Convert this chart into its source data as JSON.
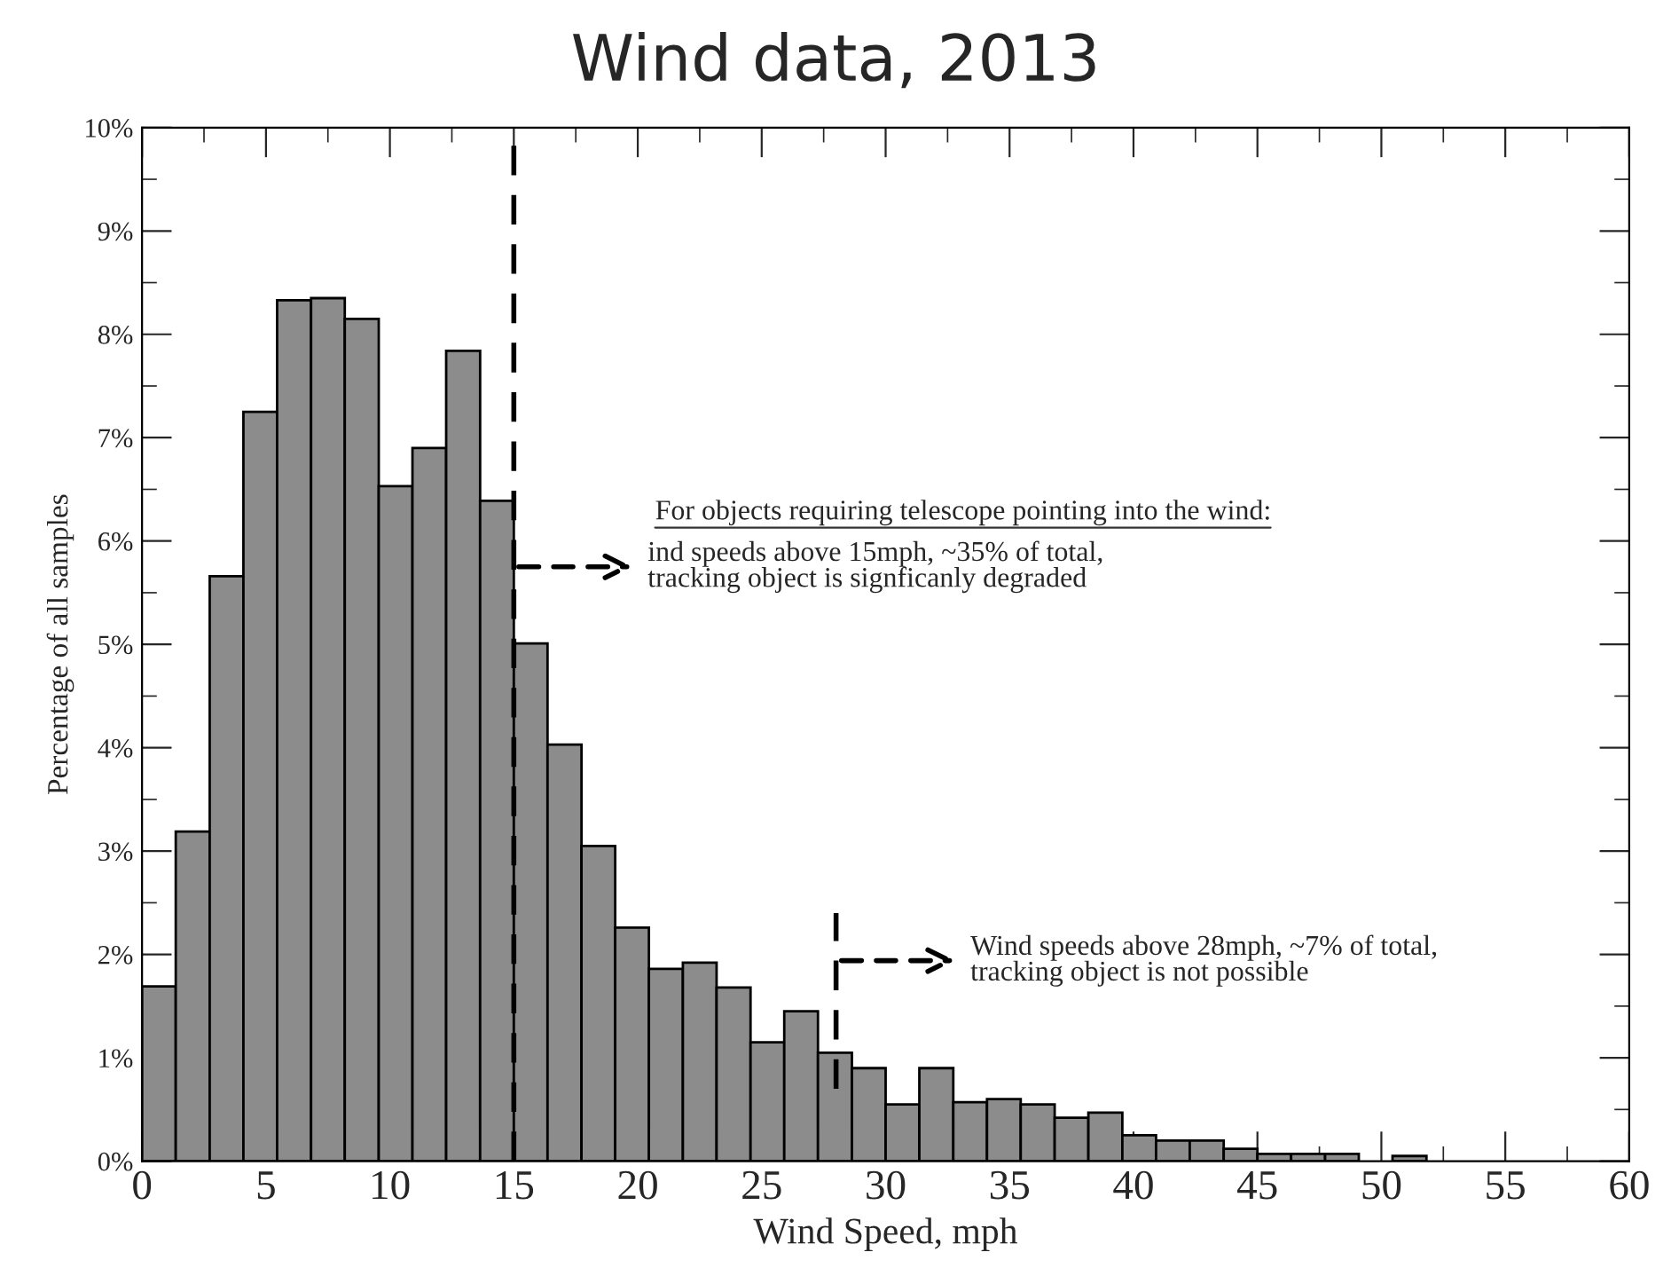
{
  "chart_data": {
    "type": "histogram",
    "title": "Wind data, 2013",
    "xlabel": "Wind Speed, mph",
    "ylabel": "Percentage of all samples",
    "bins": [
      0,
      1.36,
      2.73,
      4.09,
      5.45,
      6.82,
      8.18,
      9.55,
      10.91,
      12.27,
      13.64,
      15,
      16.36,
      17.73,
      19.09,
      20.45,
      21.82,
      23.18,
      24.55,
      25.91,
      27.27,
      28.64,
      30,
      31.36,
      32.73,
      34.09,
      35.45,
      36.82,
      38.18,
      39.55,
      40.91,
      42.27,
      43.64,
      45,
      46.36,
      47.73,
      49.09,
      50.45,
      51.82
    ],
    "values": [
      1.69,
      3.19,
      5.66,
      7.25,
      8.33,
      8.35,
      8.15,
      6.53,
      6.9,
      7.84,
      6.39,
      5.01,
      4.03,
      3.05,
      2.26,
      1.86,
      1.92,
      1.68,
      1.15,
      1.45,
      1.05,
      0.9,
      0.55,
      0.9,
      0.57,
      0.6,
      0.55,
      0.42,
      0.47,
      0.25,
      0.2,
      0.2,
      0.12,
      0.07,
      0.07,
      0.07,
      0,
      0.05
    ],
    "color": "#8c8c8c",
    "xlim": [
      0,
      60
    ],
    "xticks": [
      0,
      5,
      10,
      15,
      20,
      25,
      30,
      35,
      40,
      45,
      50,
      55,
      60
    ],
    "ylim": [
      0,
      10
    ],
    "yticks": [
      {
        "value": 0,
        "label": "0%"
      },
      {
        "value": 1,
        "label": "1%"
      },
      {
        "value": 2,
        "label": "2%"
      },
      {
        "value": 3,
        "label": "3%"
      },
      {
        "value": 4,
        "label": "4%"
      },
      {
        "value": 5,
        "label": "5%"
      },
      {
        "value": 6,
        "label": "6%"
      },
      {
        "value": 7,
        "label": "7%"
      },
      {
        "value": 8,
        "label": "8%"
      },
      {
        "value": 9,
        "label": "9%"
      },
      {
        "value": 10,
        "label": "10%"
      }
    ],
    "ref_lines": [
      {
        "axis": "x",
        "value": 15,
        "line_style": "dashed",
        "color": "#000000"
      },
      {
        "axis": "x",
        "value": 28,
        "line_style": "dashed",
        "color": "#000000"
      }
    ],
    "annotations": [
      "For objects requiring telescope pointing into the wind:",
      "ind speeds above 15mph, ~35% of total,\ntracking object is signficanly degraded",
      "Wind speeds above 28mph, ~7% of total,\ntracking object is not possible"
    ],
    "grid": false
  }
}
